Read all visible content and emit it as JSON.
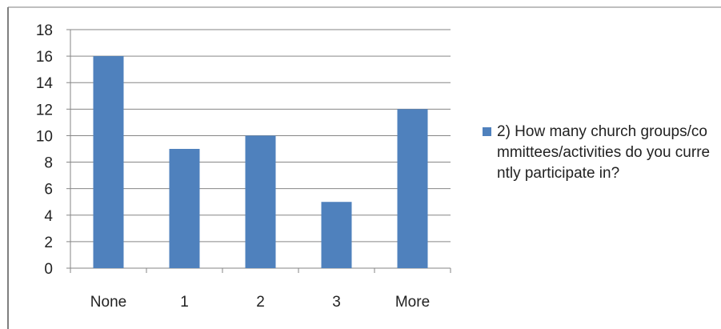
{
  "chart_data": {
    "type": "bar",
    "categories": [
      "None",
      "1",
      "2",
      "3",
      "More"
    ],
    "series": [
      {
        "name": "2) How many church groups/committees/activities do you currently participate in?",
        "values": [
          16,
          9,
          10,
          5,
          12
        ]
      }
    ],
    "ylim": [
      0,
      18
    ],
    "yticks": [
      0,
      2,
      4,
      6,
      8,
      10,
      12,
      14,
      16,
      18
    ],
    "grid": true,
    "legend_position": "right",
    "colors": {
      "bar": "#4F81BD",
      "grid": "#868686",
      "axis": "#868686",
      "frame": "#7f7f7f"
    }
  }
}
